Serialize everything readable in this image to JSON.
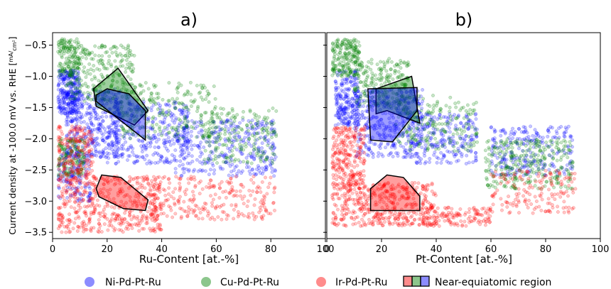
{
  "chart_data": [
    {
      "type": "scatter",
      "title": "a)",
      "xlabel": "Ru-Content [at.-%]",
      "xlim": [
        0,
        100
      ],
      "ylim": [
        -3.6,
        -0.3
      ],
      "xticks": [
        0,
        20,
        40,
        60,
        80,
        100
      ],
      "yticks": [
        -3.5,
        -3.0,
        -2.5,
        -2.0,
        -1.5,
        -1.0,
        -0.5
      ],
      "series": [
        {
          "name": "Ni-Pd-Pt-Ru",
          "color": "#0000ff",
          "clusters": [
            {
              "xr": [
                2,
                10
              ],
              "yr": [
                -1.6,
                -0.9
              ],
              "n": 260
            },
            {
              "xr": [
                5,
                25
              ],
              "yr": [
                -2.3,
                -1.2
              ],
              "n": 380
            },
            {
              "xr": [
                20,
                50
              ],
              "yr": [
                -2.4,
                -1.4
              ],
              "n": 320
            },
            {
              "xr": [
                45,
                82
              ],
              "yr": [
                -2.6,
                -1.7
              ],
              "n": 340
            },
            {
              "xr": [
                2,
                14
              ],
              "yr": [
                -3.0,
                -2.2
              ],
              "n": 150
            }
          ]
        },
        {
          "name": "Cu-Pd-Pt-Ru",
          "color": "#008000",
          "clusters": [
            {
              "xr": [
                2,
                10
              ],
              "yr": [
                -1.0,
                -0.4
              ],
              "n": 130
            },
            {
              "xr": [
                5,
                30
              ],
              "yr": [
                -1.4,
                -0.5
              ],
              "n": 260
            },
            {
              "xr": [
                25,
                60
              ],
              "yr": [
                -2.0,
                -1.1
              ],
              "n": 240
            },
            {
              "xr": [
                55,
                82
              ],
              "yr": [
                -2.4,
                -1.5
              ],
              "n": 200
            },
            {
              "xr": [
                2,
                12
              ],
              "yr": [
                -2.6,
                -2.0
              ],
              "n": 150
            }
          ]
        },
        {
          "name": "Ir-Pd-Pt-Ru",
          "color": "#ff0000",
          "clusters": [
            {
              "xr": [
                2,
                15
              ],
              "yr": [
                -2.6,
                -1.8
              ],
              "n": 180
            },
            {
              "xr": [
                2,
                40
              ],
              "yr": [
                -3.5,
                -2.6
              ],
              "n": 500
            },
            {
              "xr": [
                35,
                82
              ],
              "yr": [
                -3.3,
                -2.6
              ],
              "n": 260
            }
          ]
        }
      ],
      "near_equiatomic_regions": [
        {
          "color": "#008000",
          "points": [
            [
              15,
              -1.2
            ],
            [
              24,
              -0.87
            ],
            [
              35,
              -1.55
            ],
            [
              30,
              -1.78
            ],
            [
              16,
              -1.48
            ]
          ]
        },
        {
          "color": "#0000ff",
          "points": [
            [
              16,
              -1.3
            ],
            [
              20,
              -1.2
            ],
            [
              28,
              -1.28
            ],
            [
              34,
              -1.55
            ],
            [
              34,
              -2.02
            ],
            [
              16,
              -1.4
            ]
          ]
        },
        {
          "color": "#ff0000",
          "points": [
            [
              16,
              -2.8
            ],
            [
              18,
              -2.58
            ],
            [
              25,
              -2.62
            ],
            [
              35,
              -2.98
            ],
            [
              34,
              -3.15
            ],
            [
              26,
              -3.12
            ],
            [
              17,
              -2.93
            ]
          ]
        }
      ]
    },
    {
      "type": "scatter",
      "title": "b)",
      "xlabel": "Pt-Content [at.-%]",
      "xlim": [
        0,
        100
      ],
      "ylim": [
        -3.6,
        -0.3
      ],
      "xticks": [
        0,
        20,
        40,
        60,
        80,
        100
      ],
      "yticks": [
        -3.5,
        -3.0,
        -2.5,
        -2.0,
        -1.5,
        -1.0,
        -0.5
      ],
      "series": [
        {
          "name": "Ni-Pd-Pt-Ru",
          "color": "#0000ff",
          "clusters": [
            {
              "xr": [
                3,
                12
              ],
              "yr": [
                -1.8,
                -0.9
              ],
              "n": 220
            },
            {
              "xr": [
                10,
                35
              ],
              "yr": [
                -2.3,
                -1.2
              ],
              "n": 380
            },
            {
              "xr": [
                30,
                55
              ],
              "yr": [
                -2.4,
                -1.6
              ],
              "n": 240
            },
            {
              "xr": [
                60,
                90
              ],
              "yr": [
                -2.6,
                -1.8
              ],
              "n": 240
            }
          ]
        },
        {
          "name": "Cu-Pd-Pt-Ru",
          "color": "#008000",
          "clusters": [
            {
              "xr": [
                2,
                12
              ],
              "yr": [
                -1.0,
                -0.4
              ],
              "n": 190
            },
            {
              "xr": [
                10,
                30
              ],
              "yr": [
                -1.5,
                -0.7
              ],
              "n": 220
            },
            {
              "xr": [
                25,
                55
              ],
              "yr": [
                -2.2,
                -1.3
              ],
              "n": 200
            },
            {
              "xr": [
                58,
                90
              ],
              "yr": [
                -2.8,
                -2.0
              ],
              "n": 300
            }
          ]
        },
        {
          "name": "Ir-Pd-Pt-Ru",
          "color": "#ff0000",
          "clusters": [
            {
              "xr": [
                2,
                14
              ],
              "yr": [
                -2.8,
                -1.8
              ],
              "n": 260
            },
            {
              "xr": [
                2,
                40
              ],
              "yr": [
                -3.4,
                -2.7
              ],
              "n": 460
            },
            {
              "xr": [
                35,
                60
              ],
              "yr": [
                -3.4,
                -3.1
              ],
              "n": 140
            },
            {
              "xr": [
                60,
                91
              ],
              "yr": [
                -3.2,
                -2.5
              ],
              "n": 160
            }
          ]
        }
      ],
      "near_equiatomic_regions": [
        {
          "color": "#008000",
          "points": [
            [
              18,
              -1.6
            ],
            [
              18,
              -1.2
            ],
            [
              31,
              -1.0
            ],
            [
              34,
              -1.75
            ],
            [
              22,
              -1.55
            ]
          ]
        },
        {
          "color": "#0000ff",
          "points": [
            [
              15,
              -1.2
            ],
            [
              33,
              -1.18
            ],
            [
              33,
              -1.55
            ],
            [
              24,
              -2.05
            ],
            [
              16,
              -2.02
            ]
          ]
        },
        {
          "color": "#ff0000",
          "points": [
            [
              16,
              -2.8
            ],
            [
              22,
              -2.58
            ],
            [
              28,
              -2.62
            ],
            [
              34,
              -2.92
            ],
            [
              34,
              -3.15
            ],
            [
              16,
              -3.15
            ]
          ]
        }
      ]
    }
  ],
  "shared_ylabel": {
    "text": "Current density at -100.0 mV vs. RHE [",
    "unit_num": "mA",
    "unit_den": "cm²",
    "suffix": "]"
  },
  "legend": {
    "placement": "bottom",
    "items": [
      {
        "label": "Ni-Pd-Pt-Ru",
        "color": "#0000ff"
      },
      {
        "label": "Cu-Pd-Pt-Ru",
        "color": "#008000"
      },
      {
        "label": "Ir-Pd-Pt-Ru",
        "color": "#ff0000"
      },
      {
        "label": "Near-equiatomic region",
        "colors": [
          "#ff0000",
          "#008000",
          "#0000ff"
        ]
      }
    ]
  }
}
